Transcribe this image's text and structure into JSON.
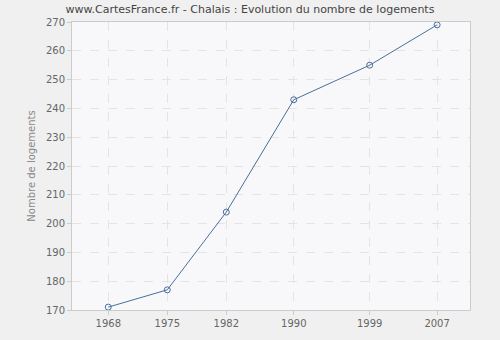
{
  "chart_data": {
    "type": "line",
    "title": "www.CartesFrance.fr - Chalais : Evolution du nombre de logements",
    "y_label": "Nombre de logements",
    "x": [
      1968,
      1975,
      1982,
      1990,
      1999,
      2007
    ],
    "values": [
      171,
      177,
      204,
      243,
      255,
      269
    ],
    "color": "#4a6f9c",
    "marker": "open_circle",
    "xlim": [
      1963.7,
      2010.9
    ],
    "xticks": [
      1968,
      1975,
      1982,
      1990,
      1999,
      2007
    ],
    "ylim": [
      170,
      270
    ],
    "yticks": [
      170,
      180,
      190,
      200,
      210,
      220,
      230,
      240,
      250,
      260,
      270
    ],
    "grid": true
  }
}
